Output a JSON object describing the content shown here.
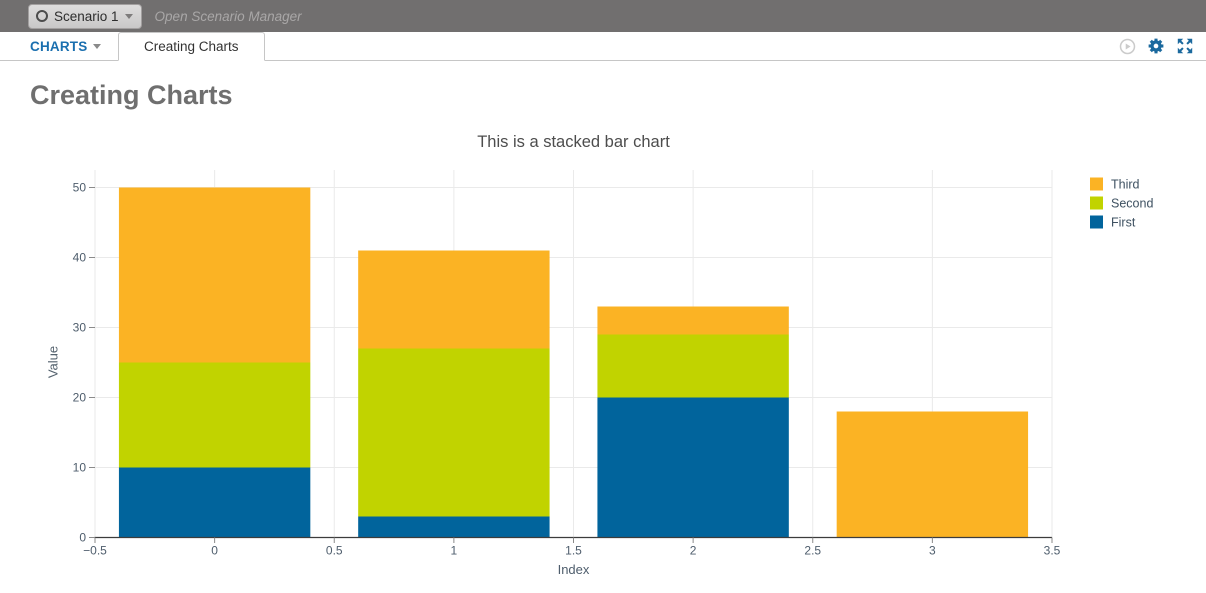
{
  "header": {
    "scenario_button": {
      "label": "Scenario 1"
    },
    "manager_link": "Open Scenario Manager"
  },
  "navbar": {
    "menu_label": "CHARTS",
    "active_tab": "Creating Charts",
    "icons": [
      "play-circle-icon",
      "gear-icon",
      "expand-icon"
    ],
    "accent_color": "#1a6faf",
    "icon_blue": "#1b699e",
    "icon_gray": "#cbcbcb"
  },
  "page": {
    "heading": "Creating Charts"
  },
  "chart_data": {
    "type": "bar",
    "stacked": true,
    "title": "This is a stacked bar chart",
    "xlabel": "Index",
    "ylabel": "Value",
    "categories": [
      0,
      1,
      2,
      3
    ],
    "series": [
      {
        "name": "First",
        "color": "#01649c",
        "values": [
          10,
          3,
          20,
          0
        ]
      },
      {
        "name": "Second",
        "color": "#c1d300",
        "values": [
          15,
          24,
          9,
          0
        ]
      },
      {
        "name": "Third",
        "color": "#fbb324",
        "values": [
          25,
          14,
          4,
          18
        ]
      }
    ],
    "stack_totals": [
      50,
      41,
      33,
      18
    ],
    "xlim": [
      -0.5,
      3.5
    ],
    "ylim": [
      0,
      50
    ],
    "xticks": [
      -0.5,
      0,
      0.5,
      1,
      1.5,
      2,
      2.5,
      3,
      3.5
    ],
    "xtick_labels": [
      "−0.5",
      "0",
      "0.5",
      "1",
      "1.5",
      "2",
      "2.5",
      "3",
      "3.5"
    ],
    "yticks": [
      0,
      10,
      20,
      30,
      40,
      50
    ],
    "bar_width": 0.8,
    "grid": true,
    "gridline_color": "#eaeaea",
    "axis_line_color": "#3c3c3c",
    "tick_label_color": "#4e5d6c",
    "legend_text_color": "#3e5161",
    "legend_position": "top-right",
    "legend_order_top_to_bottom": [
      "Third",
      "Second",
      "First"
    ]
  }
}
